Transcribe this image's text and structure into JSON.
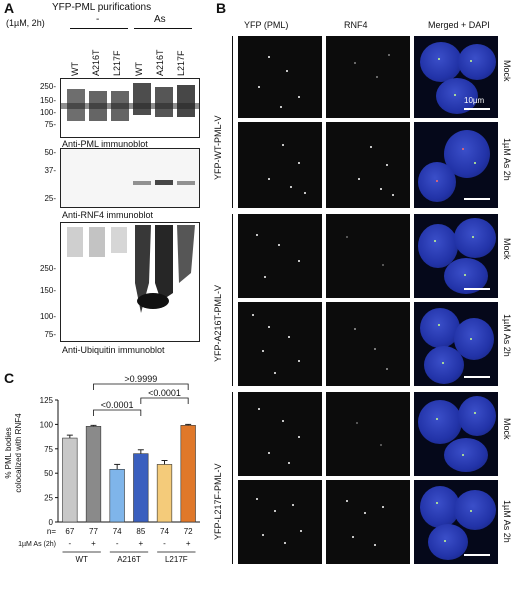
{
  "panel_a": {
    "letter": "A",
    "treatment_header": "(1µM, 2h)",
    "purification_title": "YFP-PML purifications",
    "group_minus": "-",
    "group_as": "As",
    "lanes": [
      "WT",
      "A216T",
      "L217F",
      "WT",
      "A216T",
      "L217F"
    ],
    "blot1": {
      "ticks": [
        "250-",
        "150-",
        "100-",
        "75-"
      ],
      "caption": "Anti-PML immunoblot"
    },
    "blot2": {
      "ticks": [
        "50-",
        "37-",
        "25-"
      ],
      "caption": "Anti-RNF4 immunoblot"
    },
    "blot3": {
      "ticks": [
        "250-",
        "150-",
        "100-",
        "75-"
      ],
      "caption": "Anti-Ubiquitin immunoblot"
    }
  },
  "panel_b": {
    "letter": "B",
    "columns": [
      "YFP (PML)",
      "RNF4",
      "Merged + DAPI"
    ],
    "construct_labels": [
      "YFP-WT-PML-V",
      "YFP-A216T-PML-V",
      "YFP-L217F-PML-V"
    ],
    "row_conditions": [
      "Mock",
      "1µM As 2h",
      "Mock",
      "1µM As 2h",
      "Mock",
      "1µM As 2h"
    ],
    "scale_label": "10µm"
  },
  "panel_c": {
    "letter": "C",
    "chart_data": {
      "type": "bar",
      "ylabel": "% PML bodies\ncolocalized with RNF4",
      "ylim": [
        0,
        125
      ],
      "yticks": [
        "0",
        "25",
        "50",
        "75",
        "100",
        "125"
      ],
      "categories": [
        "WT -",
        "WT +",
        "A216T -",
        "A216T +",
        "L217F -",
        "L217F +"
      ],
      "values": [
        86,
        98,
        54,
        70,
        59,
        99
      ],
      "errors": [
        3,
        1,
        5,
        4,
        4,
        1
      ],
      "colors": [
        "#c8c8c8",
        "#8a8a8a",
        "#7fb5ea",
        "#3a5fbf",
        "#f4cb7a",
        "#e0782a"
      ],
      "n_label": "n=",
      "n_values": [
        "67",
        "77",
        "74",
        "85",
        "74",
        "72"
      ],
      "treatment_label": "1µM As (2h)",
      "treatment_signs": [
        "-",
        "+",
        "-",
        "+",
        "-",
        "+"
      ],
      "groups": [
        "WT",
        "A216T",
        "L217F"
      ],
      "comparisons": [
        {
          "label": ">0.9999"
        },
        {
          "label": "<0.0001"
        },
        {
          "label": "<0.0001"
        }
      ]
    }
  }
}
